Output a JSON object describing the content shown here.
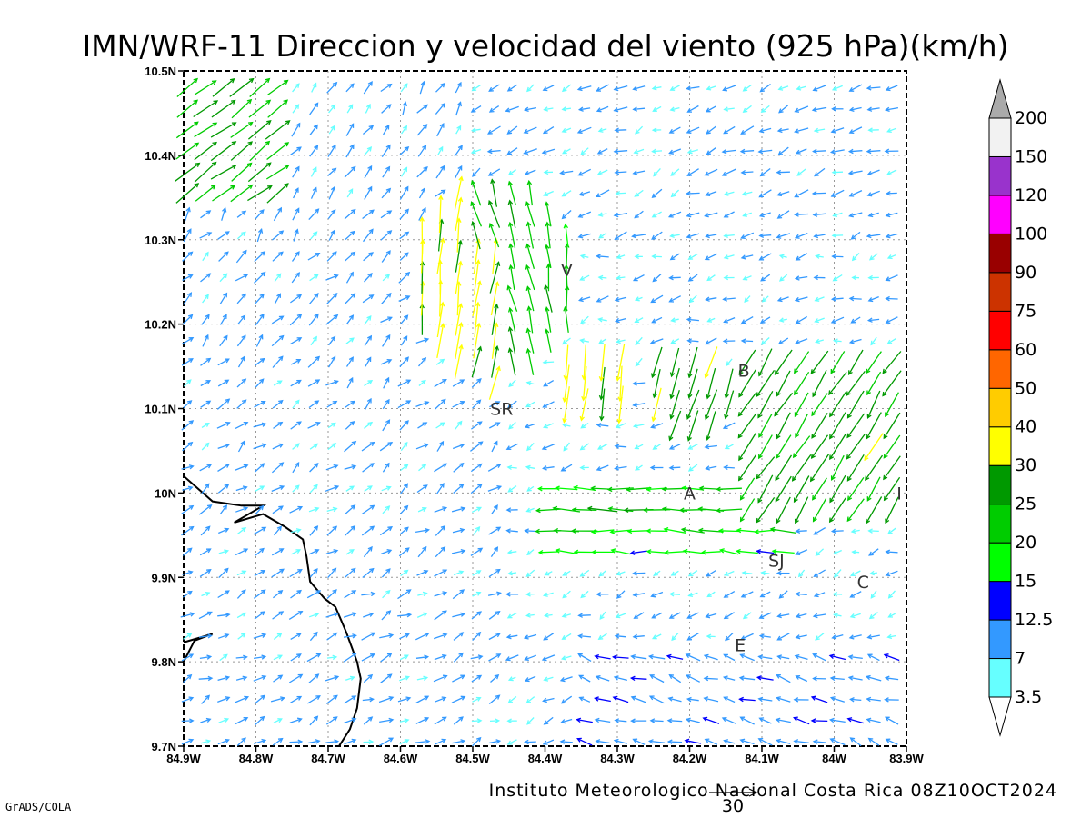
{
  "chart_data": {
    "type": "vector-field",
    "title": "IMN/WRF-11 Direccion y velocidad del viento (925 hPa)(km/h)",
    "footer": "Instituto Meteorologico Nacional Costa Rica 08Z10OCT2024",
    "software_credit": "GrADS/COLA",
    "xlim": [
      -84.9,
      -83.9
    ],
    "ylim": [
      9.7,
      10.5
    ],
    "x_ticks": [
      "84.9W",
      "84.8W",
      "84.7W",
      "84.6W",
      "84.5W",
      "84.4W",
      "84.3W",
      "84.2W",
      "84.1W",
      "84W",
      "83.9W"
    ],
    "y_ticks": [
      "9.7N",
      "9.8N",
      "9.9N",
      "10N",
      "10.1N",
      "10.2N",
      "10.3N",
      "10.4N",
      "10.5N"
    ],
    "grid": true,
    "colorbar": {
      "unit": "km/h",
      "labels": [
        "3.5",
        "7",
        "12.5",
        "15",
        "20",
        "25",
        "30",
        "40",
        "50",
        "60",
        "75",
        "90",
        "100",
        "120",
        "150",
        "200"
      ],
      "colors": [
        "#66ffff",
        "#3399ff",
        "#0000ff",
        "#00ff00",
        "#00cc00",
        "#009900",
        "#ffff00",
        "#ffcc00",
        "#ff6600",
        "#ff0000",
        "#cc3300",
        "#990000",
        "#ff00ff",
        "#9933cc",
        "#f2f2f2",
        "#aaaaaa"
      ]
    },
    "reference_vector": {
      "value": "30",
      "unit": "km/h"
    },
    "city_markers": [
      {
        "label": "V",
        "lon": -84.37,
        "lat": 10.265
      },
      {
        "label": "B",
        "lon": -84.125,
        "lat": 10.145
      },
      {
        "label": "SR",
        "lon": -84.46,
        "lat": 10.1
      },
      {
        "label": "A",
        "lon": -84.2,
        "lat": 10.0
      },
      {
        "label": "I",
        "lon": -83.91,
        "lat": 10.0
      },
      {
        "label": "SJ",
        "lon": -84.08,
        "lat": 9.92
      },
      {
        "label": "C",
        "lon": -83.96,
        "lat": 9.895
      },
      {
        "label": "E",
        "lon": -84.13,
        "lat": 9.82
      }
    ],
    "coastline": [
      [
        -84.9,
        10.02
      ],
      [
        -84.86,
        9.99
      ],
      [
        -84.82,
        9.985
      ],
      [
        -84.79,
        9.985
      ],
      [
        -84.83,
        9.965
      ],
      [
        -84.79,
        9.975
      ],
      [
        -84.76,
        9.96
      ],
      [
        -84.735,
        9.945
      ],
      [
        -84.73,
        9.925
      ],
      [
        -84.725,
        9.895
      ],
      [
        -84.705,
        9.875
      ],
      [
        -84.69,
        9.865
      ],
      [
        -84.675,
        9.835
      ],
      [
        -84.66,
        9.8
      ],
      [
        -84.655,
        9.78
      ],
      [
        -84.66,
        9.745
      ],
      [
        -84.67,
        9.72
      ],
      [
        -84.685,
        9.7
      ]
    ],
    "coastline2": [
      [
        -84.9,
        9.8
      ],
      [
        -84.885,
        9.825
      ],
      [
        -84.86,
        9.833
      ],
      [
        -84.9,
        9.823
      ]
    ],
    "wind_field_note": "Winds are sampled on a regular grid; vectors drawn by script from the modeled flow."
  }
}
